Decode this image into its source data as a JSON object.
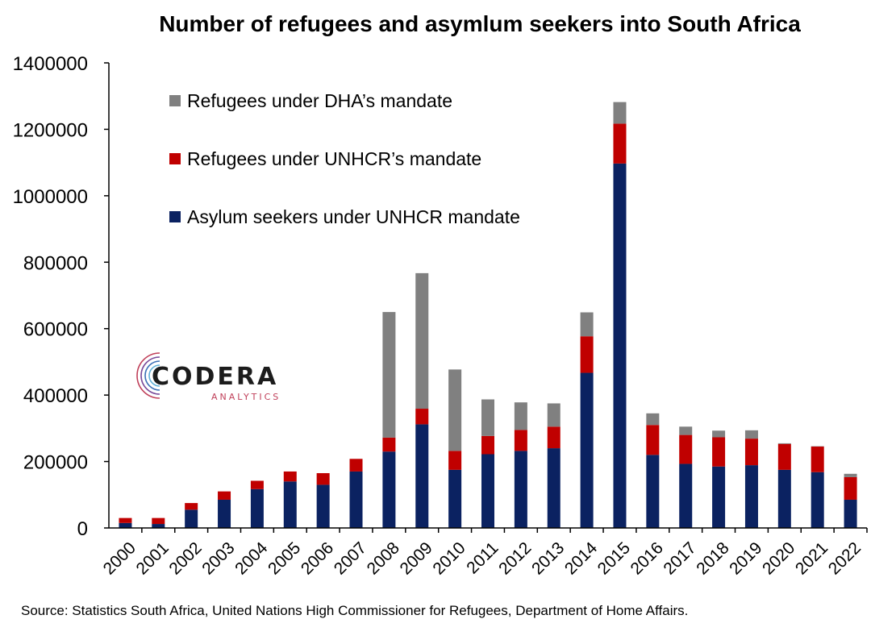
{
  "title": "Number of refugees and asymlum seekers into South Africa",
  "source": "Source: Statistics South Africa, United Nations High Commissioner for Refugees, Department of Home Affairs.",
  "logo": {
    "name": "CODERA",
    "sub": "ANALYTICS"
  },
  "chart_data": {
    "type": "bar",
    "stacked": true,
    "categories": [
      "2000",
      "2001",
      "2002",
      "2003",
      "2004",
      "2005",
      "2006",
      "2007",
      "2008",
      "2009",
      "2010",
      "2011",
      "2012",
      "2013",
      "2014",
      "2015",
      "2016",
      "2017",
      "2018",
      "2019",
      "2020",
      "2021",
      "2022"
    ],
    "series": [
      {
        "name": "Asylum seekers under UNHCR mandate",
        "color": "#0b2261",
        "values": [
          15000,
          12000,
          55000,
          85000,
          117000,
          140000,
          130000,
          170000,
          230000,
          312000,
          175000,
          222000,
          232000,
          240000,
          467000,
          1097000,
          220000,
          193000,
          185000,
          189000,
          175000,
          168000,
          85000
        ]
      },
      {
        "name": "Refugees under UNHCR's mandate",
        "color": "#c00000",
        "values": [
          15000,
          18000,
          20000,
          25000,
          25000,
          30000,
          35000,
          38000,
          42000,
          47000,
          57000,
          55000,
          63000,
          65000,
          110000,
          120000,
          90000,
          87000,
          88000,
          80000,
          78000,
          77000,
          68000
        ]
      },
      {
        "name": "Refugees under DHA's mandate",
        "color": "#808080",
        "values": [
          0,
          0,
          0,
          0,
          0,
          0,
          0,
          0,
          378000,
          408000,
          245000,
          110000,
          83000,
          70000,
          72000,
          65000,
          35000,
          25000,
          20000,
          25000,
          2000,
          1000,
          10000
        ]
      }
    ],
    "legend_labels": [
      "Refugees under DHA’s mandate",
      "Refugees under UNHCR’s mandate",
      "Asylum seekers under UNHCR mandate"
    ],
    "legend_placement": "top-left",
    "ylim": [
      0,
      1400000
    ],
    "yticks": [
      "0",
      "200000",
      "400000",
      "600000",
      "800000",
      "1000000",
      "1200000",
      "1400000"
    ],
    "grid": false
  }
}
